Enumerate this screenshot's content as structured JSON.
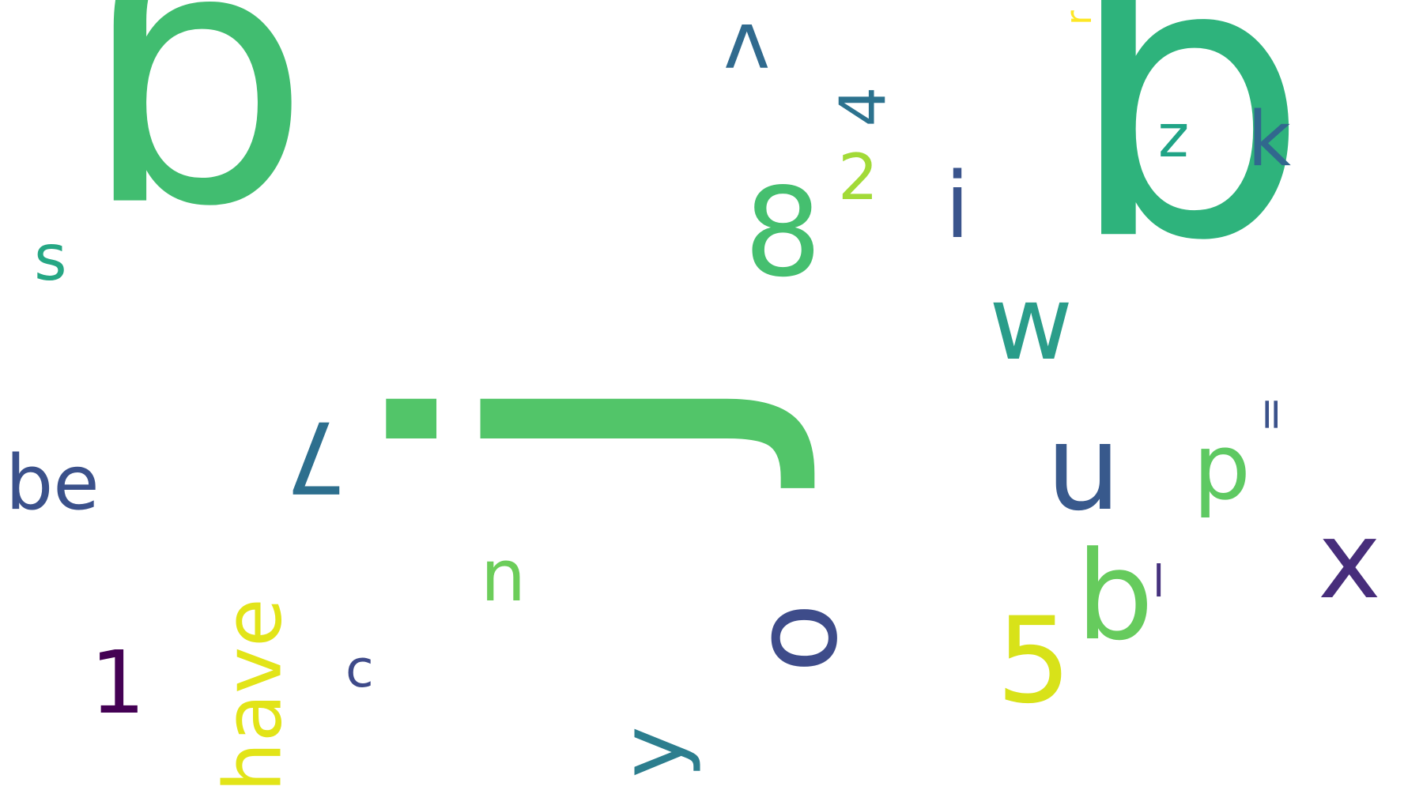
{
  "word_cloud": {
    "words": [
      {
        "text": "g",
        "color": "#41bd70",
        "orientation": "upside-down"
      },
      {
        "text": "q",
        "color": "#2eb37c",
        "orientation": "upside-down"
      },
      {
        "text": "j",
        "color": "#52c569",
        "orientation": "vertical"
      },
      {
        "text": "8",
        "color": "#45bf6f",
        "orientation": "horizontal"
      },
      {
        "text": "u",
        "color": "#38598c",
        "orientation": "horizontal"
      },
      {
        "text": "w",
        "color": "#2a9d8a",
        "orientation": "horizontal"
      },
      {
        "text": "7",
        "color": "#2d6f8e",
        "orientation": "upside-down"
      },
      {
        "text": "b",
        "color": "#66cb5d",
        "orientation": "horizontal"
      },
      {
        "text": "o",
        "color": "#3e4c8a",
        "orientation": "vertical"
      },
      {
        "text": "5",
        "color": "#d8e219",
        "orientation": "horizontal"
      },
      {
        "text": "x",
        "color": "#472d7b",
        "orientation": "horizontal"
      },
      {
        "text": "i",
        "color": "#3a548c",
        "orientation": "horizontal"
      },
      {
        "text": "have",
        "color": "#e2e418",
        "orientation": "vertical"
      },
      {
        "text": "1",
        "color": "#440154",
        "orientation": "horizontal"
      },
      {
        "text": "p",
        "color": "#5ec962",
        "orientation": "horizontal"
      },
      {
        "text": "v",
        "color": "#306a8e",
        "orientation": "upside-down"
      },
      {
        "text": "4",
        "color": "#2c728e",
        "orientation": "vertical"
      },
      {
        "text": "be",
        "color": "#3b518b",
        "orientation": "horizontal"
      },
      {
        "text": "k",
        "color": "#31688e",
        "orientation": "horizontal"
      },
      {
        "text": "z",
        "color": "#20a486",
        "orientation": "upside-down"
      },
      {
        "text": "n",
        "color": "#6ccd5a",
        "orientation": "horizontal"
      },
      {
        "text": "y",
        "color": "#2c7e8e",
        "orientation": "vertical"
      },
      {
        "text": "2",
        "color": "#a2da37",
        "orientation": "horizontal"
      },
      {
        "text": "s",
        "color": "#26a784",
        "orientation": "horizontal"
      },
      {
        "text": "c",
        "color": "#3e4a89",
        "orientation": "horizontal"
      },
      {
        "text": "l",
        "color": "#46327e",
        "orientation": "horizontal"
      },
      {
        "text": "=",
        "color": "#3b528b",
        "orientation": "vertical"
      },
      {
        "text": "r",
        "color": "#fde725",
        "orientation": "vertical"
      }
    ]
  }
}
